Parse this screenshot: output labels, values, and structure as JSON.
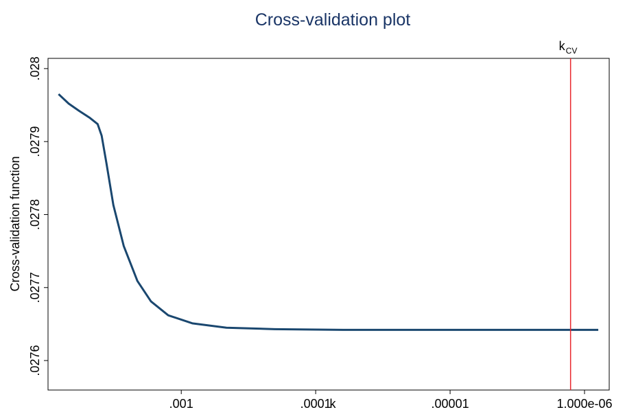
{
  "chart_data": {
    "type": "line",
    "title": "Cross-validation plot",
    "x_label": "k",
    "y_label": "Cross-validation function",
    "x_log": true,
    "x_reversed": true,
    "xlim": [
      0.0098,
      6.55e-07
    ],
    "xticks": [
      {
        "value": 0.001,
        "label": ".001"
      },
      {
        "value": 0.0001,
        "label": ".0001"
      },
      {
        "value": 1e-05,
        "label": ".00001"
      },
      {
        "value": 1e-06,
        "label": "1.000e-06"
      }
    ],
    "ylim": [
      0.0275596,
      0.028014
    ],
    "yticks": [
      {
        "value": 0.0276,
        "label": ".0276"
      },
      {
        "value": 0.0277,
        "label": ".0277"
      },
      {
        "value": 0.0278,
        "label": ".0278"
      },
      {
        "value": 0.0279,
        "label": ".0279"
      },
      {
        "value": 0.028,
        "label": ".028"
      }
    ],
    "grid": false,
    "series": [
      {
        "color": "#1a476f",
        "x": [
          0.00818,
          0.00688,
          0.00575,
          0.00483,
          0.00419,
          0.00391,
          0.0036,
          0.0032,
          0.00268,
          0.00212,
          0.00168,
          0.00125,
          0.000828,
          0.000461,
          0.000202,
          6.25e-05,
          1.07e-05,
          7.9e-07
        ],
        "values": [
          0.027965,
          0.027952,
          0.027942,
          0.027933,
          0.027924,
          0.027908,
          0.02787,
          0.027813,
          0.027757,
          0.027709,
          0.027681,
          0.027662,
          0.027651,
          0.027645,
          0.027643,
          0.027642,
          0.027642,
          0.027642
        ]
      }
    ],
    "vline": {
      "x": 1.27e-06,
      "color": "#e8252b",
      "label": "k",
      "subscript": "CV"
    }
  }
}
